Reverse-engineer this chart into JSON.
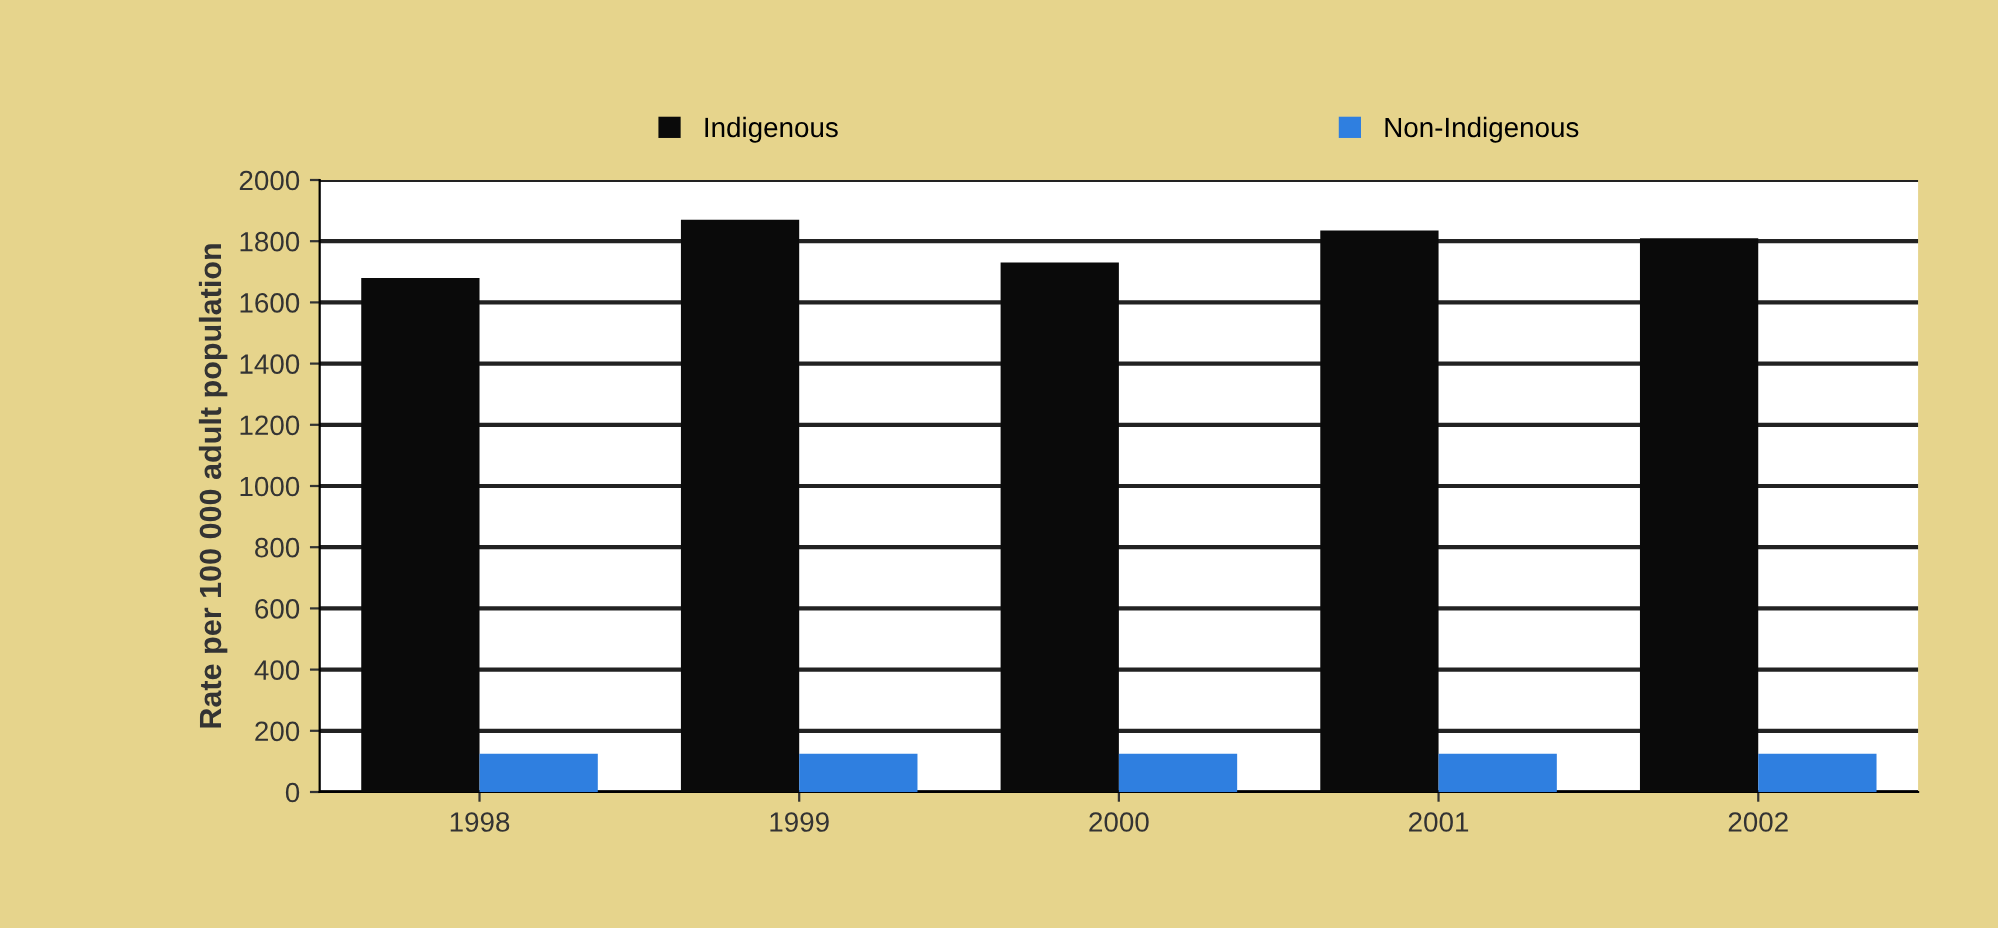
{
  "chart_data": {
    "type": "bar",
    "ylabel": "Rate per 100 000 adult population",
    "categories": [
      "1998",
      "1999",
      "2000",
      "2001",
      "2002"
    ],
    "series": [
      {
        "name": "Indigenous",
        "color": "#0a0a0a",
        "values": [
          1680,
          1870,
          1730,
          1835,
          1810
        ]
      },
      {
        "name": "Non-Indigenous",
        "color": "#2f7fe0",
        "values": [
          125,
          125,
          125,
          125,
          125
        ]
      }
    ],
    "ylim": [
      0,
      2000
    ],
    "yticks": [
      0,
      200,
      400,
      600,
      800,
      1000,
      1200,
      1400,
      1600,
      1800,
      2000
    ],
    "grid": "y",
    "legend": "top"
  }
}
